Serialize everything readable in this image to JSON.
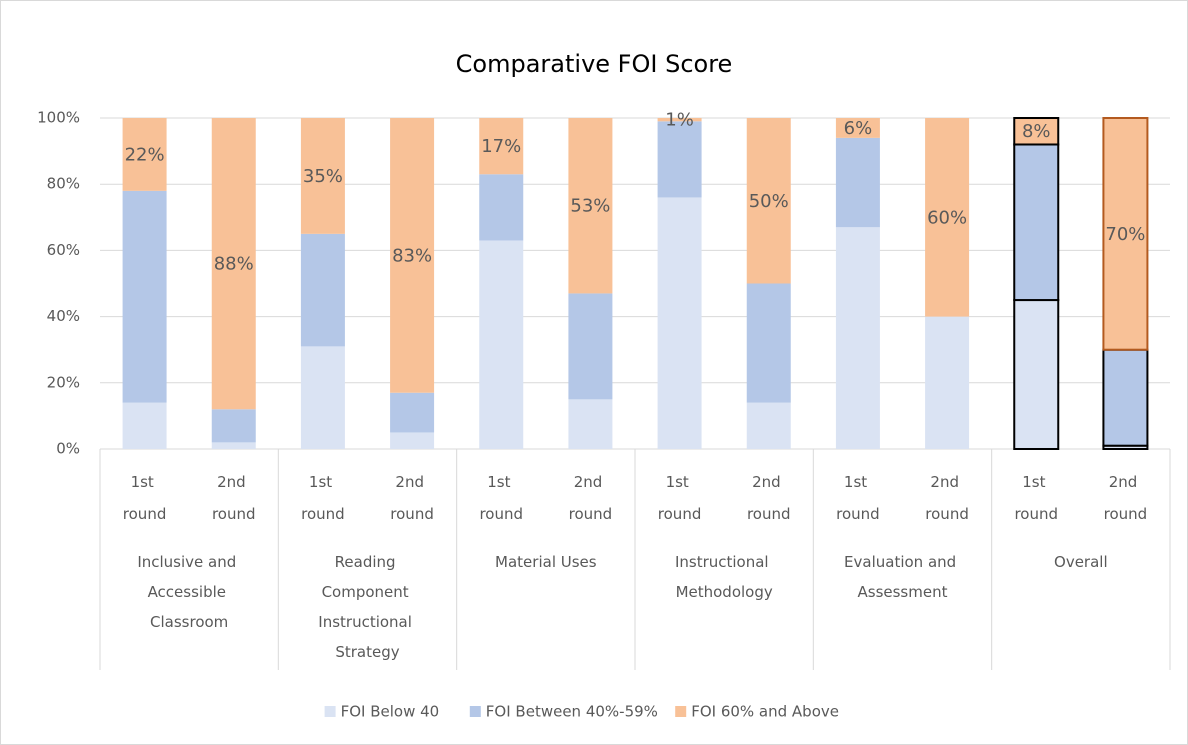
{
  "chart_data": {
    "type": "stacked_bar",
    "title": "Comparative FOI Score",
    "categories": [
      "1st round",
      "2nd round",
      "1st round",
      "2nd round",
      "1st round",
      "2nd round",
      "1st round",
      "2nd round",
      "1st round",
      "2nd round",
      "1st round",
      "2nd round"
    ],
    "groups": [
      "Inclusive and Accessible Classroom",
      "Reading Component Instructional Strategy",
      "Material Uses",
      "Instructional Methodology",
      "Evaluation and Assessment",
      "Overall"
    ],
    "series": [
      {
        "name": "FOI Below 40",
        "color": "#dae3f3",
        "values": [
          14,
          2,
          31,
          5,
          63,
          15,
          76,
          14,
          67,
          40,
          45,
          1
        ]
      },
      {
        "name": "FOI Between 40%-59%",
        "color": "#b4c7e7",
        "values": [
          64,
          10,
          34,
          12,
          20,
          32,
          23,
          36,
          27,
          0,
          47,
          29
        ]
      },
      {
        "name": "FOI 60% and Above",
        "color": "#f8c197",
        "values": [
          22,
          88,
          35,
          83,
          17,
          53,
          1,
          50,
          6,
          60,
          8,
          70
        ],
        "value_labels": [
          "22%",
          "88%",
          "35%",
          "83%",
          "17%",
          "53%",
          "1%",
          "50%",
          "6%",
          "60%",
          "8%",
          "70%"
        ]
      }
    ],
    "ylim": [
      0,
      100
    ],
    "yticks": [
      {
        "value": 0,
        "label": "0%"
      },
      {
        "value": 20,
        "label": "20%"
      },
      {
        "value": 40,
        "label": "40%"
      },
      {
        "value": 60,
        "label": "60%"
      },
      {
        "value": 80,
        "label": "80%"
      },
      {
        "value": 100,
        "label": "100%"
      }
    ],
    "legend": "bottom"
  }
}
